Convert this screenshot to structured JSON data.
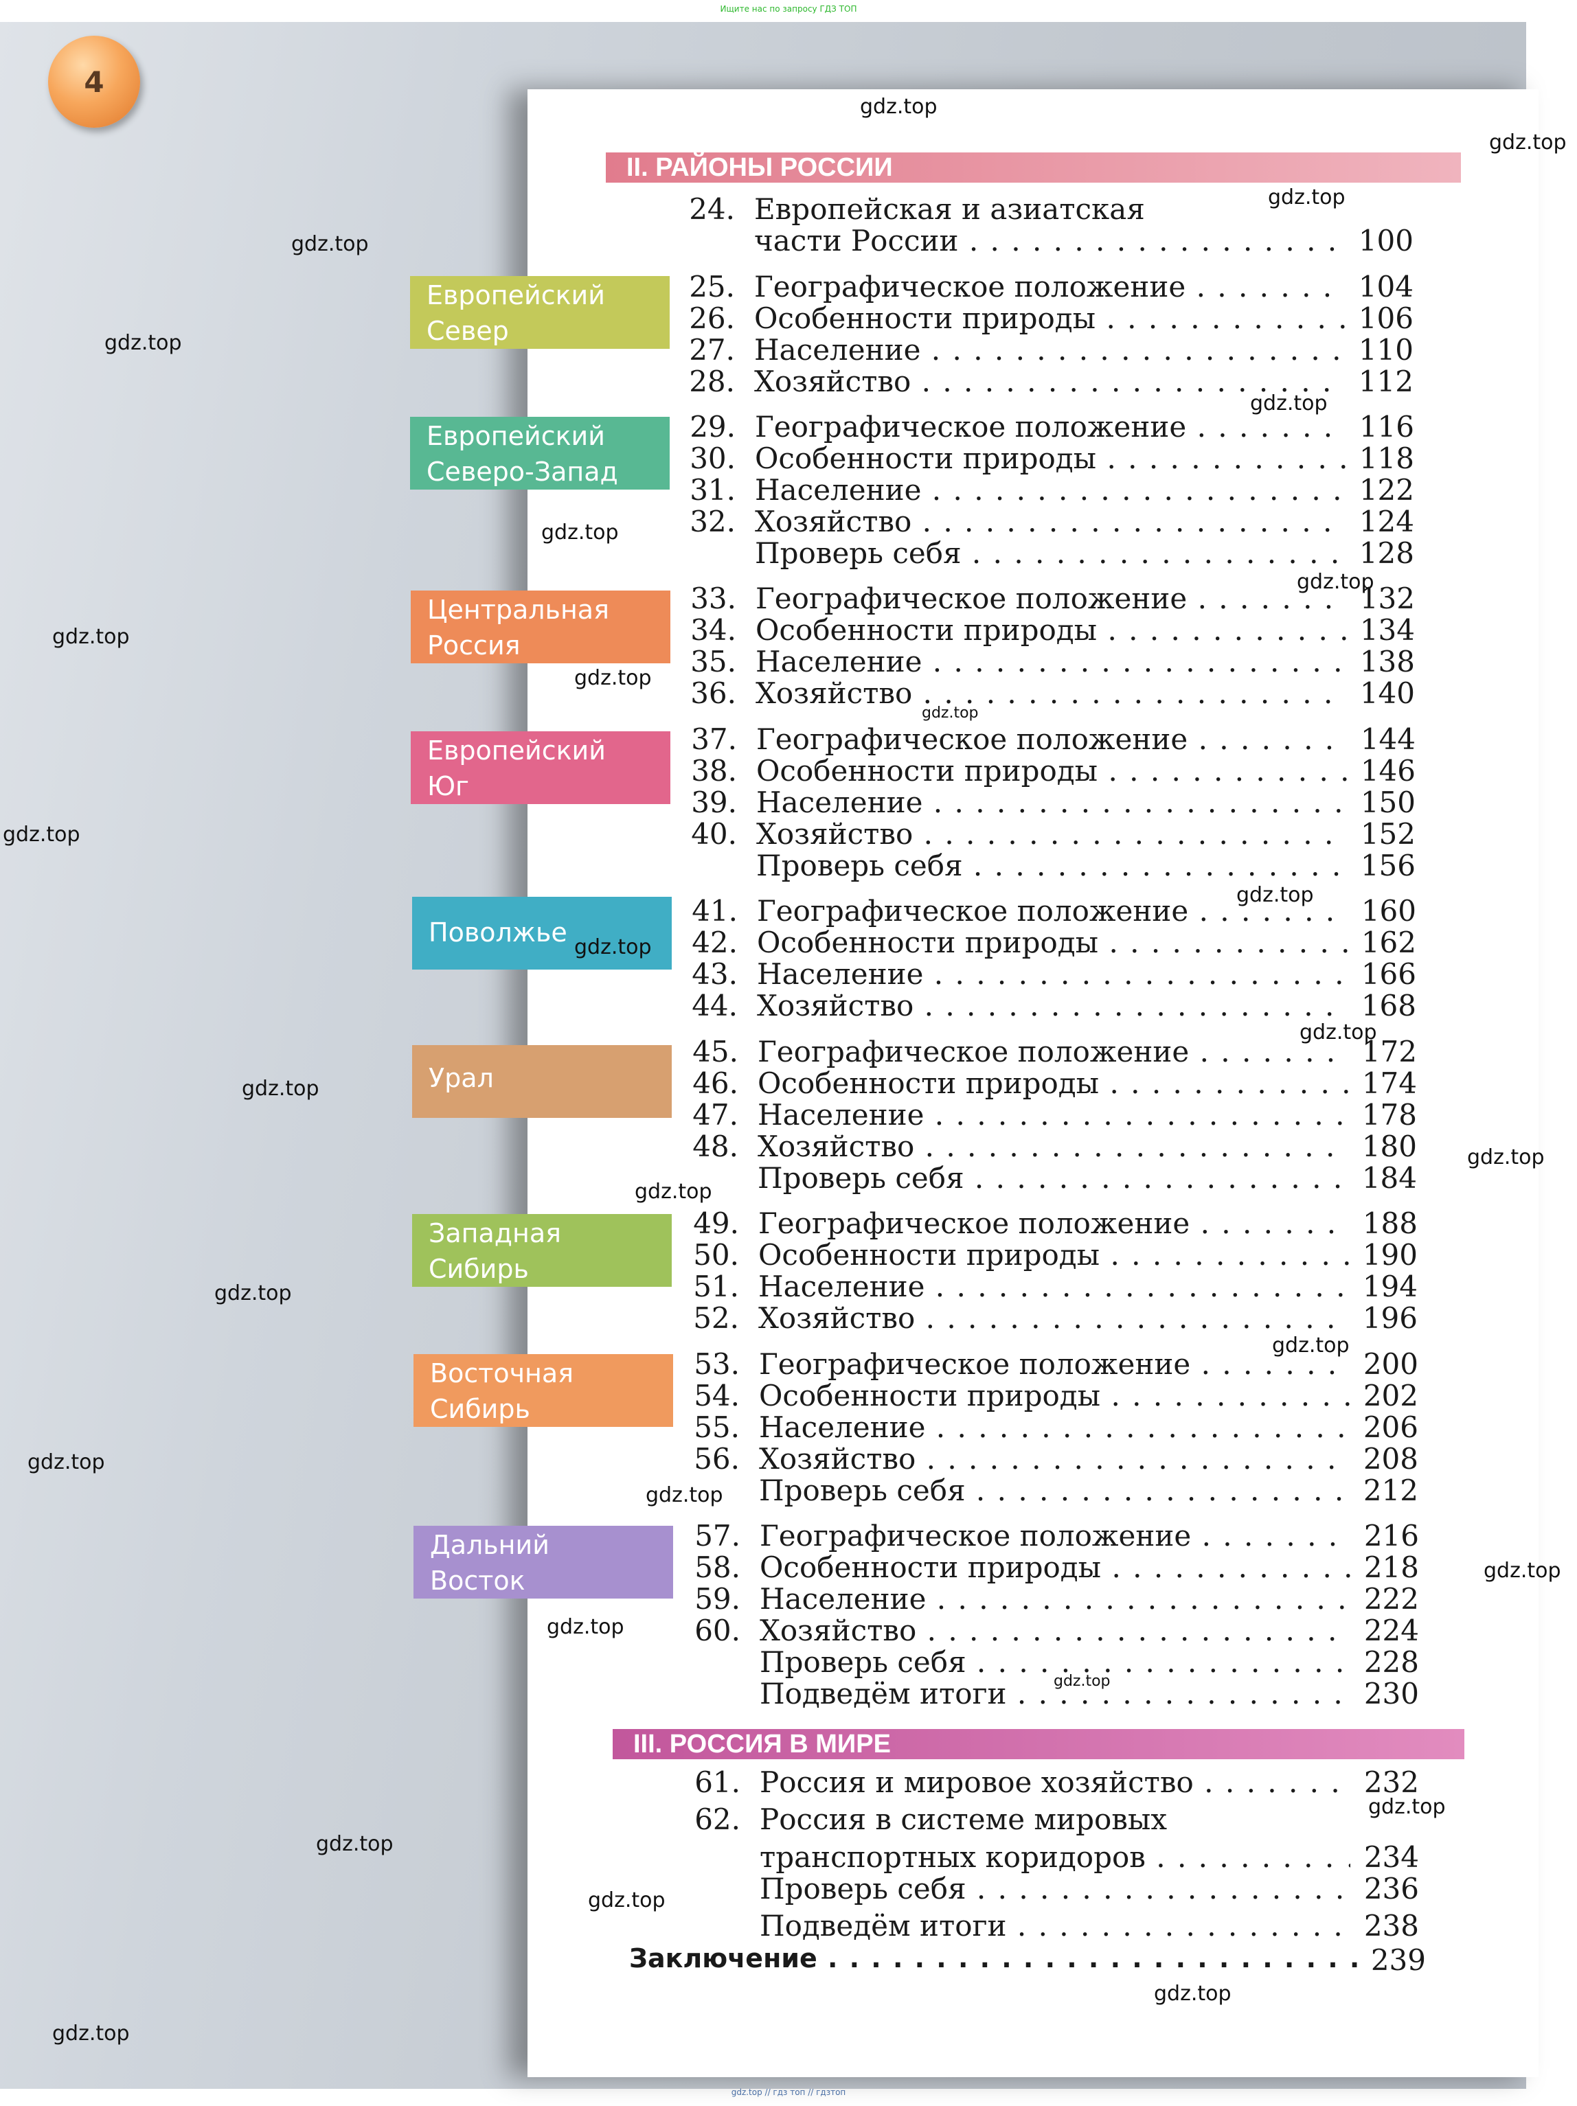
{
  "top_note": "Ищите нас по запросу ГДЗ ТОП",
  "bottom_note": "gdz.top // гдз топ // гдзтоп",
  "page_number": "4",
  "sections": {
    "regions_title": "II. РАЙОНЫ РОССИИ",
    "world_title": "III. РОССИЯ В МИРЕ"
  },
  "regions": [
    {
      "line1": "Европейский",
      "line2": "Север",
      "color": "#c3c95a"
    },
    {
      "line1": "Европейский",
      "line2": "Северо-Запад",
      "color": "#58b893"
    },
    {
      "line1": "Центральная",
      "line2": "Россия",
      "color": "#ee8b58"
    },
    {
      "line1": "Европейский",
      "line2": "Юг",
      "color": "#e2668c"
    },
    {
      "line1": "Поволжье",
      "line2": "",
      "color": "#40aec5"
    },
    {
      "line1": "Урал",
      "line2": "",
      "color": "#d7a070"
    },
    {
      "line1": "Западная",
      "line2": "Сибирь",
      "color": "#9fc25b"
    },
    {
      "line1": "Восточная",
      "line2": "Сибирь",
      "color": "#f09a5e"
    },
    {
      "line1": "Дальний",
      "line2": "Восток",
      "color": "#a790cf"
    }
  ],
  "toc": [
    {
      "num": "24.",
      "title": "Европейская и азиатская",
      "page": ""
    },
    {
      "num": "",
      "title": "части России",
      "page": "100"
    },
    {
      "num": "25.",
      "title": "Географическое положение",
      "page": "104"
    },
    {
      "num": "26.",
      "title": "Особенности природы",
      "page": "106"
    },
    {
      "num": "27.",
      "title": "Население",
      "page": "110"
    },
    {
      "num": "28.",
      "title": "Хозяйство",
      "page": "112"
    },
    {
      "num": "29.",
      "title": "Географическое положение",
      "page": "116"
    },
    {
      "num": "30.",
      "title": "Особенности природы",
      "page": "118"
    },
    {
      "num": "31.",
      "title": "Население",
      "page": "122"
    },
    {
      "num": "32.",
      "title": "Хозяйство",
      "page": "124"
    },
    {
      "num": "",
      "title": "Проверь себя",
      "page": "128"
    },
    {
      "num": "33.",
      "title": "Географическое положение",
      "page": "132"
    },
    {
      "num": "34.",
      "title": "Особенности природы",
      "page": "134"
    },
    {
      "num": "35.",
      "title": "Население",
      "page": "138"
    },
    {
      "num": "36.",
      "title": "Хозяйство",
      "page": "140"
    },
    {
      "num": "37.",
      "title": "Географическое положение",
      "page": "144"
    },
    {
      "num": "38.",
      "title": "Особенности природы",
      "page": "146"
    },
    {
      "num": "39.",
      "title": "Население",
      "page": "150"
    },
    {
      "num": "40.",
      "title": "Хозяйство",
      "page": "152"
    },
    {
      "num": "",
      "title": "Проверь себя",
      "page": "156"
    },
    {
      "num": "41.",
      "title": "Географическое положение",
      "page": "160"
    },
    {
      "num": "42.",
      "title": "Особенности природы",
      "page": "162"
    },
    {
      "num": "43.",
      "title": "Население",
      "page": "166"
    },
    {
      "num": "44.",
      "title": "Хозяйство",
      "page": "168"
    },
    {
      "num": "45.",
      "title": "Географическое положение",
      "page": "172"
    },
    {
      "num": "46.",
      "title": "Особенности природы",
      "page": "174"
    },
    {
      "num": "47.",
      "title": "Население",
      "page": "178"
    },
    {
      "num": "48.",
      "title": "Хозяйство",
      "page": "180"
    },
    {
      "num": "",
      "title": "Проверь себя",
      "page": "184"
    },
    {
      "num": "49.",
      "title": "Географическое положение",
      "page": "188"
    },
    {
      "num": "50.",
      "title": "Особенности природы",
      "page": "190"
    },
    {
      "num": "51.",
      "title": "Население",
      "page": "194"
    },
    {
      "num": "52.",
      "title": "Хозяйство",
      "page": "196"
    },
    {
      "num": "53.",
      "title": "Географическое положение",
      "page": "200"
    },
    {
      "num": "54.",
      "title": "Особенности природы",
      "page": "202"
    },
    {
      "num": "55.",
      "title": "Население",
      "page": "206"
    },
    {
      "num": "56.",
      "title": "Хозяйство",
      "page": "208"
    },
    {
      "num": "",
      "title": "Проверь себя",
      "page": "212"
    },
    {
      "num": "57.",
      "title": "Географическое положение",
      "page": "216"
    },
    {
      "num": "58.",
      "title": "Особенности природы",
      "page": "218"
    },
    {
      "num": "59.",
      "title": "Население",
      "page": "222"
    },
    {
      "num": "60.",
      "title": "Хозяйство",
      "page": "224"
    },
    {
      "num": "",
      "title": "Проверь себя",
      "page": "228"
    },
    {
      "num": "",
      "title": "Подведём итоги",
      "page": "230"
    },
    {
      "num": "61.",
      "title": "Россия и мировое хозяйство",
      "page": "232"
    },
    {
      "num": "62.",
      "title": "Россия в системе мировых",
      "page": ""
    },
    {
      "num": "",
      "title": "транспортных коридоров",
      "page": "234"
    },
    {
      "num": "",
      "title": "Проверь себя",
      "page": "236"
    },
    {
      "num": "",
      "title": "Подведём итоги",
      "page": "238"
    }
  ],
  "conclusion": {
    "title": "Заключение",
    "page": "239"
  },
  "watermark": "gdz.top"
}
